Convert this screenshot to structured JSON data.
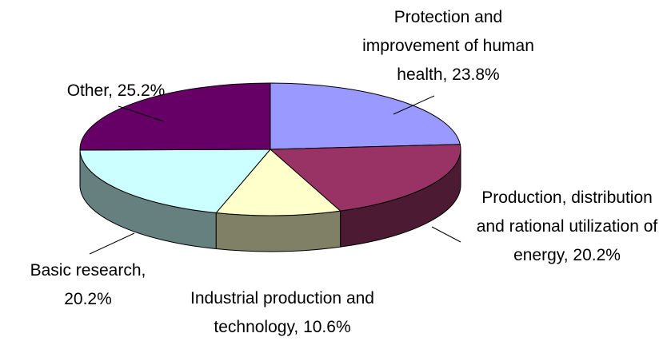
{
  "chart_data": {
    "type": "pie3d",
    "categories": [
      "Protection and improvement of human health",
      "Production, distribution and rational utilization of energy",
      "Industrial production and technology",
      "Basic research",
      "Other"
    ],
    "values": [
      23.8,
      20.2,
      10.6,
      20.2,
      25.2
    ],
    "value_labels": [
      "23.8%",
      "20.2%",
      "10.6%",
      "20.2%",
      "25.2%"
    ],
    "label_separator": ", ",
    "colors": [
      "#9999ff",
      "#993366",
      "#ffffcc",
      "#ccffff",
      "#660066"
    ]
  }
}
